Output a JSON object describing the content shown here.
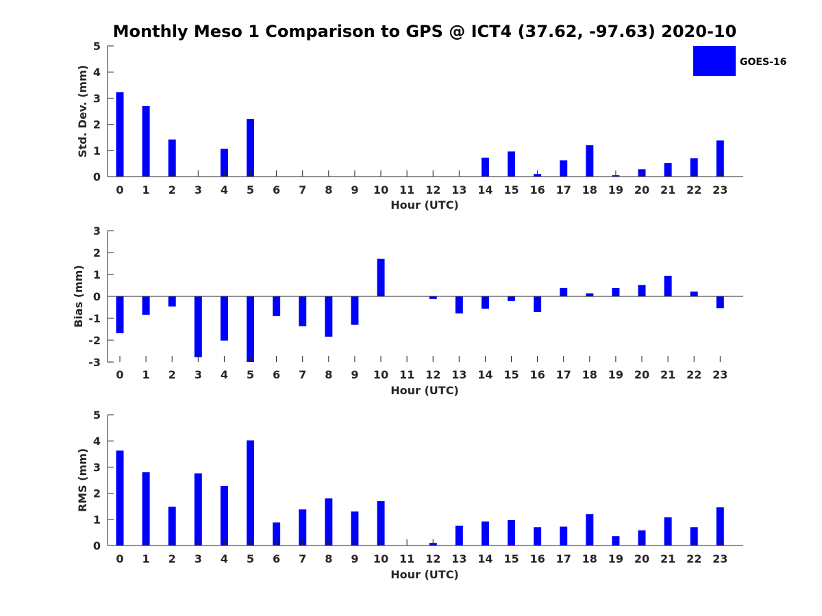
{
  "chart_data": {
    "type": "bar",
    "title": "Monthly Meso 1 Comparison to GPS @ ICT4 (37.62, -97.63) 2020-10",
    "legend": {
      "entries": [
        "GOES-16"
      ],
      "placement": "top-right"
    },
    "bar_color": "#0000ff",
    "categories": [
      "0",
      "1",
      "2",
      "3",
      "4",
      "5",
      "6",
      "7",
      "8",
      "9",
      "10",
      "11",
      "12",
      "13",
      "14",
      "15",
      "16",
      "17",
      "18",
      "19",
      "20",
      "21",
      "22",
      "23"
    ],
    "panels": [
      {
        "id": "std",
        "ylabel": "Std. Dev. (mm)",
        "xlabel": "Hour (UTC)",
        "ylim": [
          0,
          5
        ],
        "yticks": [
          "0",
          "1",
          "2",
          "3",
          "4",
          "5"
        ],
        "values": [
          3.23,
          2.7,
          1.42,
          0,
          1.06,
          2.2,
          0,
          0,
          0,
          0,
          0,
          0,
          0,
          0,
          0.72,
          0.96,
          0.1,
          0.62,
          1.2,
          0.05,
          0.28,
          0.52,
          0.7,
          1.38
        ]
      },
      {
        "id": "bias",
        "ylabel": "Bias (mm)",
        "xlabel": "Hour (UTC)",
        "ylim": [
          -3,
          3
        ],
        "yticks": [
          "-3",
          "-2",
          "-1",
          "0",
          "1",
          "2",
          "3"
        ],
        "values": [
          -1.68,
          -0.84,
          -0.46,
          -2.78,
          -2.02,
          -3.0,
          -0.9,
          -1.36,
          -1.84,
          -1.3,
          1.72,
          0,
          -0.12,
          -0.78,
          -0.56,
          -0.22,
          -0.72,
          0.38,
          0.14,
          0.38,
          0.52,
          0.94,
          0.22,
          -0.54
        ]
      },
      {
        "id": "rms",
        "ylabel": "RMS (mm)",
        "xlabel": "Hour (UTC)",
        "ylim": [
          0,
          5
        ],
        "yticks": [
          "0",
          "1",
          "2",
          "3",
          "4",
          "5"
        ],
        "values": [
          3.63,
          2.8,
          1.48,
          2.76,
          2.28,
          4.02,
          0.88,
          1.38,
          1.8,
          1.3,
          1.7,
          0,
          0.1,
          0.76,
          0.92,
          0.97,
          0.7,
          0.72,
          1.2,
          0.36,
          0.58,
          1.08,
          0.7,
          1.46
        ]
      }
    ]
  }
}
